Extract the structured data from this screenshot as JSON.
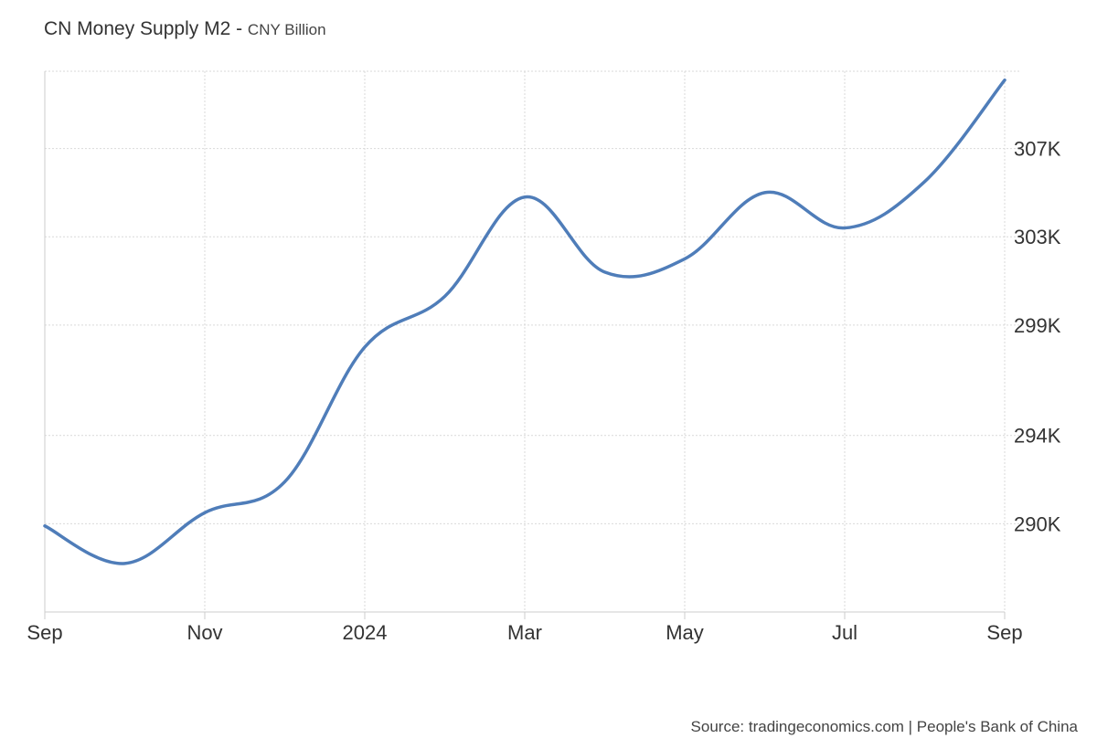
{
  "title": {
    "main": "CN Money Supply M2",
    "separator": " - ",
    "unit": "CNY Billion"
  },
  "source": {
    "text": "Source: tradingeconomics.com | People's Bank of China"
  },
  "colors": {
    "line": "#4F7DB9",
    "grid": "#d9d9d9",
    "axis": "#cccccc"
  },
  "chart_data": {
    "type": "line",
    "title": "CN Money Supply M2",
    "ylabel": "CNY Billion",
    "xlabel": "",
    "x_tick_labels": [
      "Sep",
      "Nov",
      "2024",
      "Mar",
      "May",
      "Jul",
      "Sep"
    ],
    "x_tick_dates": [
      "2023-09",
      "2023-11",
      "2024-01",
      "2024-03",
      "2024-05",
      "2024-07",
      "2024-09"
    ],
    "y_tick_labels": [
      "290K",
      "294K",
      "299K",
      "303K",
      "307K"
    ],
    "y_tick_values": [
      290000,
      294000,
      299000,
      303000,
      307000
    ],
    "ylim": [
      286000,
      310500
    ],
    "grid": true,
    "series": [
      {
        "x": [
          "2023-09",
          "2023-10",
          "2023-11",
          "2023-12",
          "2024-01",
          "2024-02",
          "2024-03",
          "2024-04",
          "2024-05",
          "2024-06",
          "2024-07",
          "2024-08",
          "2024-09"
        ],
        "values": [
          289900,
          288200,
          290500,
          291900,
          298000,
          300300,
          304800,
          301400,
          302000,
          305000,
          303400,
          305500,
          310100
        ]
      }
    ]
  }
}
